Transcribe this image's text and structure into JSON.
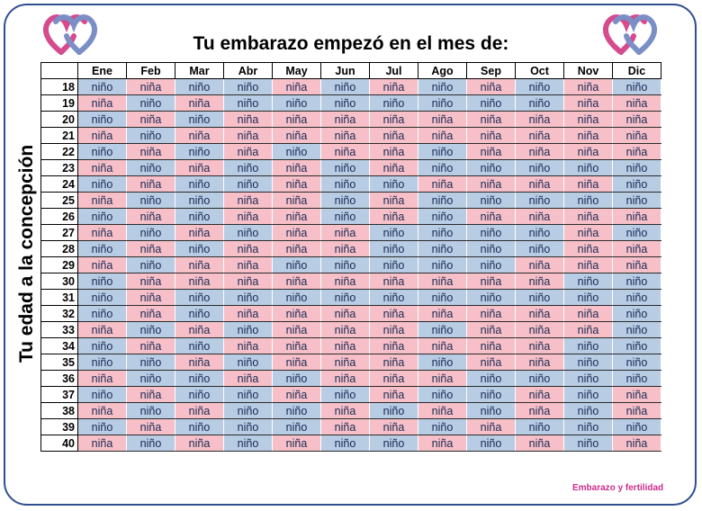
{
  "title": "Tu embarazo empezó en el mes de:",
  "side_label": "Tu edad a la concepción",
  "credit": "Embarazo y fertilidad",
  "colors": {
    "nino": "#b8cce4",
    "nina": "#f7c0c8",
    "frame": "#2f4f8f",
    "heart_pink": "#d64a8e",
    "heart_blue": "#7b8fc7"
  },
  "icons": {
    "left": "double-heart-icon",
    "right": "double-heart-icon"
  },
  "months": [
    "Ene",
    "Feb",
    "Mar",
    "Abr",
    "May",
    "Jun",
    "Jul",
    "Ago",
    "Sep",
    "Oct",
    "Nov",
    "Dic"
  ],
  "rows": [
    {
      "age": "18",
      "cells": [
        "niño",
        "niña",
        "niño",
        "niño",
        "niña",
        "niño",
        "niña",
        "niño",
        "niña",
        "niño",
        "niña",
        "niño"
      ]
    },
    {
      "age": "19",
      "cells": [
        "niña",
        "niño",
        "niña",
        "niño",
        "niño",
        "niño",
        "niño",
        "niño",
        "niño",
        "niño",
        "niña",
        "niña"
      ]
    },
    {
      "age": "20",
      "cells": [
        "niño",
        "niña",
        "niño",
        "niña",
        "niña",
        "niña",
        "niña",
        "niña",
        "niña",
        "niña",
        "niña",
        "niña"
      ]
    },
    {
      "age": "21",
      "cells": [
        "niña",
        "niño",
        "niña",
        "niña",
        "niña",
        "niña",
        "niña",
        "niña",
        "niña",
        "niña",
        "niña",
        "niña"
      ]
    },
    {
      "age": "22",
      "cells": [
        "niño",
        "niña",
        "niño",
        "niña",
        "niño",
        "niña",
        "niña",
        "niño",
        "niña",
        "niña",
        "niña",
        "niña"
      ]
    },
    {
      "age": "23",
      "cells": [
        "niña",
        "niño",
        "niña",
        "niño",
        "niña",
        "niño",
        "niña",
        "niño",
        "niño",
        "niño",
        "niño",
        "niño"
      ]
    },
    {
      "age": "24",
      "cells": [
        "niño",
        "niña",
        "niño",
        "niño",
        "niña",
        "niño",
        "niño",
        "niña",
        "niña",
        "niña",
        "niña",
        "niño"
      ]
    },
    {
      "age": "25",
      "cells": [
        "niña",
        "niño",
        "niño",
        "niña",
        "niña",
        "niño",
        "niña",
        "niño",
        "niño",
        "niño",
        "niño",
        "niño"
      ]
    },
    {
      "age": "26",
      "cells": [
        "niño",
        "niña",
        "niño",
        "niña",
        "niña",
        "niño",
        "niña",
        "niño",
        "niña",
        "niña",
        "niña",
        "niña"
      ]
    },
    {
      "age": "27",
      "cells": [
        "niña",
        "niño",
        "niña",
        "niño",
        "niña",
        "niña",
        "niño",
        "niño",
        "niño",
        "niño",
        "niña",
        "niño"
      ]
    },
    {
      "age": "28",
      "cells": [
        "niño",
        "niña",
        "niño",
        "niña",
        "niña",
        "niña",
        "niño",
        "niño",
        "niño",
        "niño",
        "niña",
        "niña"
      ]
    },
    {
      "age": "29",
      "cells": [
        "niña",
        "niño",
        "niña",
        "niña",
        "niño",
        "niño",
        "niño",
        "niño",
        "niño",
        "niña",
        "niña",
        "niña"
      ]
    },
    {
      "age": "30",
      "cells": [
        "niño",
        "niña",
        "niña",
        "niña",
        "niña",
        "niña",
        "niña",
        "niña",
        "niña",
        "niña",
        "niño",
        "niño"
      ]
    },
    {
      "age": "31",
      "cells": [
        "niño",
        "niña",
        "niño",
        "niño",
        "niño",
        "niño",
        "niño",
        "niño",
        "niño",
        "niño",
        "niño",
        "niño"
      ]
    },
    {
      "age": "32",
      "cells": [
        "niño",
        "niña",
        "niño",
        "niña",
        "niña",
        "niña",
        "niña",
        "niña",
        "niña",
        "niña",
        "niña",
        "niño"
      ]
    },
    {
      "age": "33",
      "cells": [
        "niña",
        "niño",
        "niña",
        "niño",
        "niña",
        "niña",
        "niña",
        "niño",
        "niña",
        "niña",
        "niña",
        "niño"
      ]
    },
    {
      "age": "34",
      "cells": [
        "niño",
        "niña",
        "niño",
        "niña",
        "niña",
        "niña",
        "niña",
        "niña",
        "niña",
        "niña",
        "niño",
        "niño"
      ]
    },
    {
      "age": "35",
      "cells": [
        "niño",
        "niño",
        "niña",
        "niño",
        "niña",
        "niña",
        "niña",
        "niño",
        "niña",
        "niña",
        "niño",
        "niño"
      ]
    },
    {
      "age": "36",
      "cells": [
        "niña",
        "niño",
        "niño",
        "niña",
        "niño",
        "niña",
        "niña",
        "niña",
        "niño",
        "niño",
        "niño",
        "niño"
      ]
    },
    {
      "age": "37",
      "cells": [
        "niño",
        "niña",
        "niño",
        "niño",
        "niña",
        "niño",
        "niña",
        "niño",
        "niño",
        "niña",
        "niño",
        "niña"
      ]
    },
    {
      "age": "38",
      "cells": [
        "niña",
        "niño",
        "niña",
        "niño",
        "niño",
        "niña",
        "niño",
        "niña",
        "niño",
        "niña",
        "niño",
        "niña"
      ]
    },
    {
      "age": "39",
      "cells": [
        "niño",
        "niña",
        "niño",
        "niño",
        "niño",
        "niña",
        "niña",
        "niño",
        "niña",
        "niño",
        "niño",
        "niño"
      ]
    },
    {
      "age": "40",
      "cells": [
        "niña",
        "niño",
        "niña",
        "niño",
        "niña",
        "niño",
        "niño",
        "niña",
        "niño",
        "niña",
        "niño",
        "niña"
      ]
    }
  ]
}
